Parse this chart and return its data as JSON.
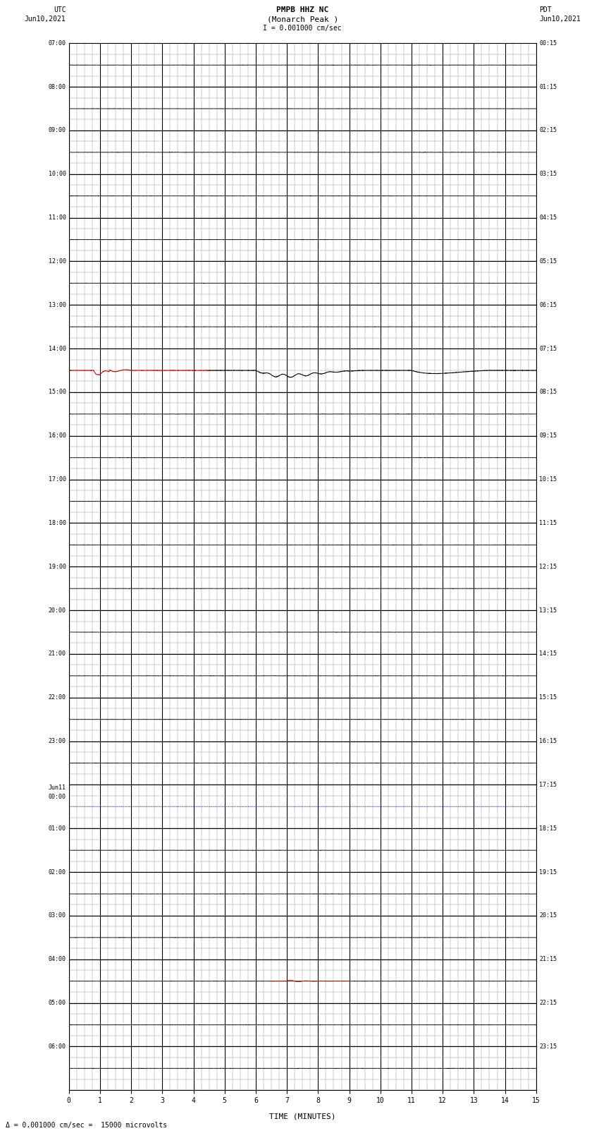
{
  "title_line1": "PMPB HHZ NC",
  "title_line2": "(Monarch Peak )",
  "scale_label": "I = 0.001000 cm/sec",
  "left_label_line1": "UTC",
  "left_label_line2": "Jun10,2021",
  "right_label_line1": "PDT",
  "right_label_line2": "Jun10,2021",
  "xlabel": "TIME (MINUTES)",
  "footer": "Δ = 0.001000 cm/sec =  15000 microvolts",
  "x_min": 0,
  "x_max": 15,
  "num_rows": 24,
  "left_times": [
    "07:00",
    "08:00",
    "09:00",
    "10:00",
    "11:00",
    "12:00",
    "13:00",
    "14:00",
    "15:00",
    "16:00",
    "17:00",
    "18:00",
    "19:00",
    "20:00",
    "21:00",
    "22:00",
    "23:00",
    "Jun11\n00:00",
    "01:00",
    "02:00",
    "03:00",
    "04:00",
    "05:00",
    "06:00"
  ],
  "right_times": [
    "00:15",
    "01:15",
    "02:15",
    "03:15",
    "04:15",
    "05:15",
    "06:15",
    "07:15",
    "08:15",
    "09:15",
    "10:15",
    "11:15",
    "12:15",
    "13:15",
    "14:15",
    "15:15",
    "16:15",
    "17:15",
    "18:15",
    "19:15",
    "20:15",
    "21:15",
    "22:15",
    "23:15"
  ],
  "bg_color": "#ffffff",
  "major_grid_color": "#000000",
  "minor_grid_color": "#888888",
  "trace_color_normal": "#000000",
  "trace_color_red": "#cc0000",
  "trace_color_blue": "#0000aa",
  "event_row": 7,
  "event2_row": 17,
  "event3_row": 21,
  "fig_width": 8.5,
  "fig_height": 16.13
}
